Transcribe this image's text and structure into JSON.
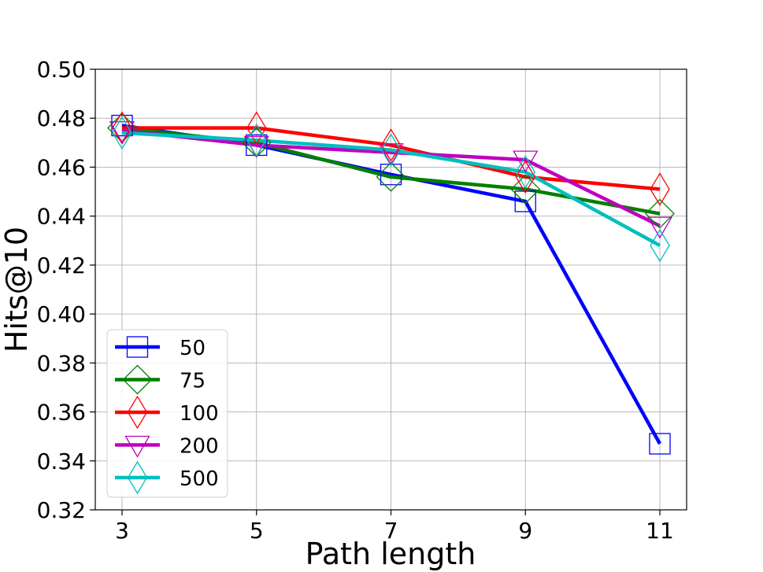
{
  "chart_data": {
    "type": "line",
    "title": "",
    "xlabel": "Path length",
    "ylabel": "Hits@10",
    "x": [
      3,
      5,
      7,
      9,
      11
    ],
    "xticks": [
      "3",
      "5",
      "7",
      "9",
      "11"
    ],
    "ylim": [
      0.32,
      0.5
    ],
    "yticks": [
      "0.32",
      "0.34",
      "0.36",
      "0.38",
      "0.40",
      "0.42",
      "0.44",
      "0.46",
      "0.48",
      "0.50"
    ],
    "grid": true,
    "legend_position": "bottom-left",
    "series": [
      {
        "name": "50",
        "color": "#0000ff",
        "marker": "square",
        "values": [
          0.477,
          0.469,
          0.457,
          0.446,
          0.347
        ]
      },
      {
        "name": "75",
        "color": "#008000",
        "marker": "diamond",
        "values": [
          0.476,
          0.47,
          0.456,
          0.451,
          0.441
        ]
      },
      {
        "name": "100",
        "color": "#ff0000",
        "marker": "thin-diamond",
        "values": [
          0.476,
          0.476,
          0.469,
          0.456,
          0.451
        ]
      },
      {
        "name": "200",
        "color": "#bf00bf",
        "marker": "triangle-down",
        "values": [
          0.475,
          0.469,
          0.466,
          0.463,
          0.436
        ]
      },
      {
        "name": "500",
        "color": "#00bfbf",
        "marker": "thin-diamond",
        "values": [
          0.474,
          0.471,
          0.467,
          0.458,
          0.428
        ]
      }
    ]
  }
}
